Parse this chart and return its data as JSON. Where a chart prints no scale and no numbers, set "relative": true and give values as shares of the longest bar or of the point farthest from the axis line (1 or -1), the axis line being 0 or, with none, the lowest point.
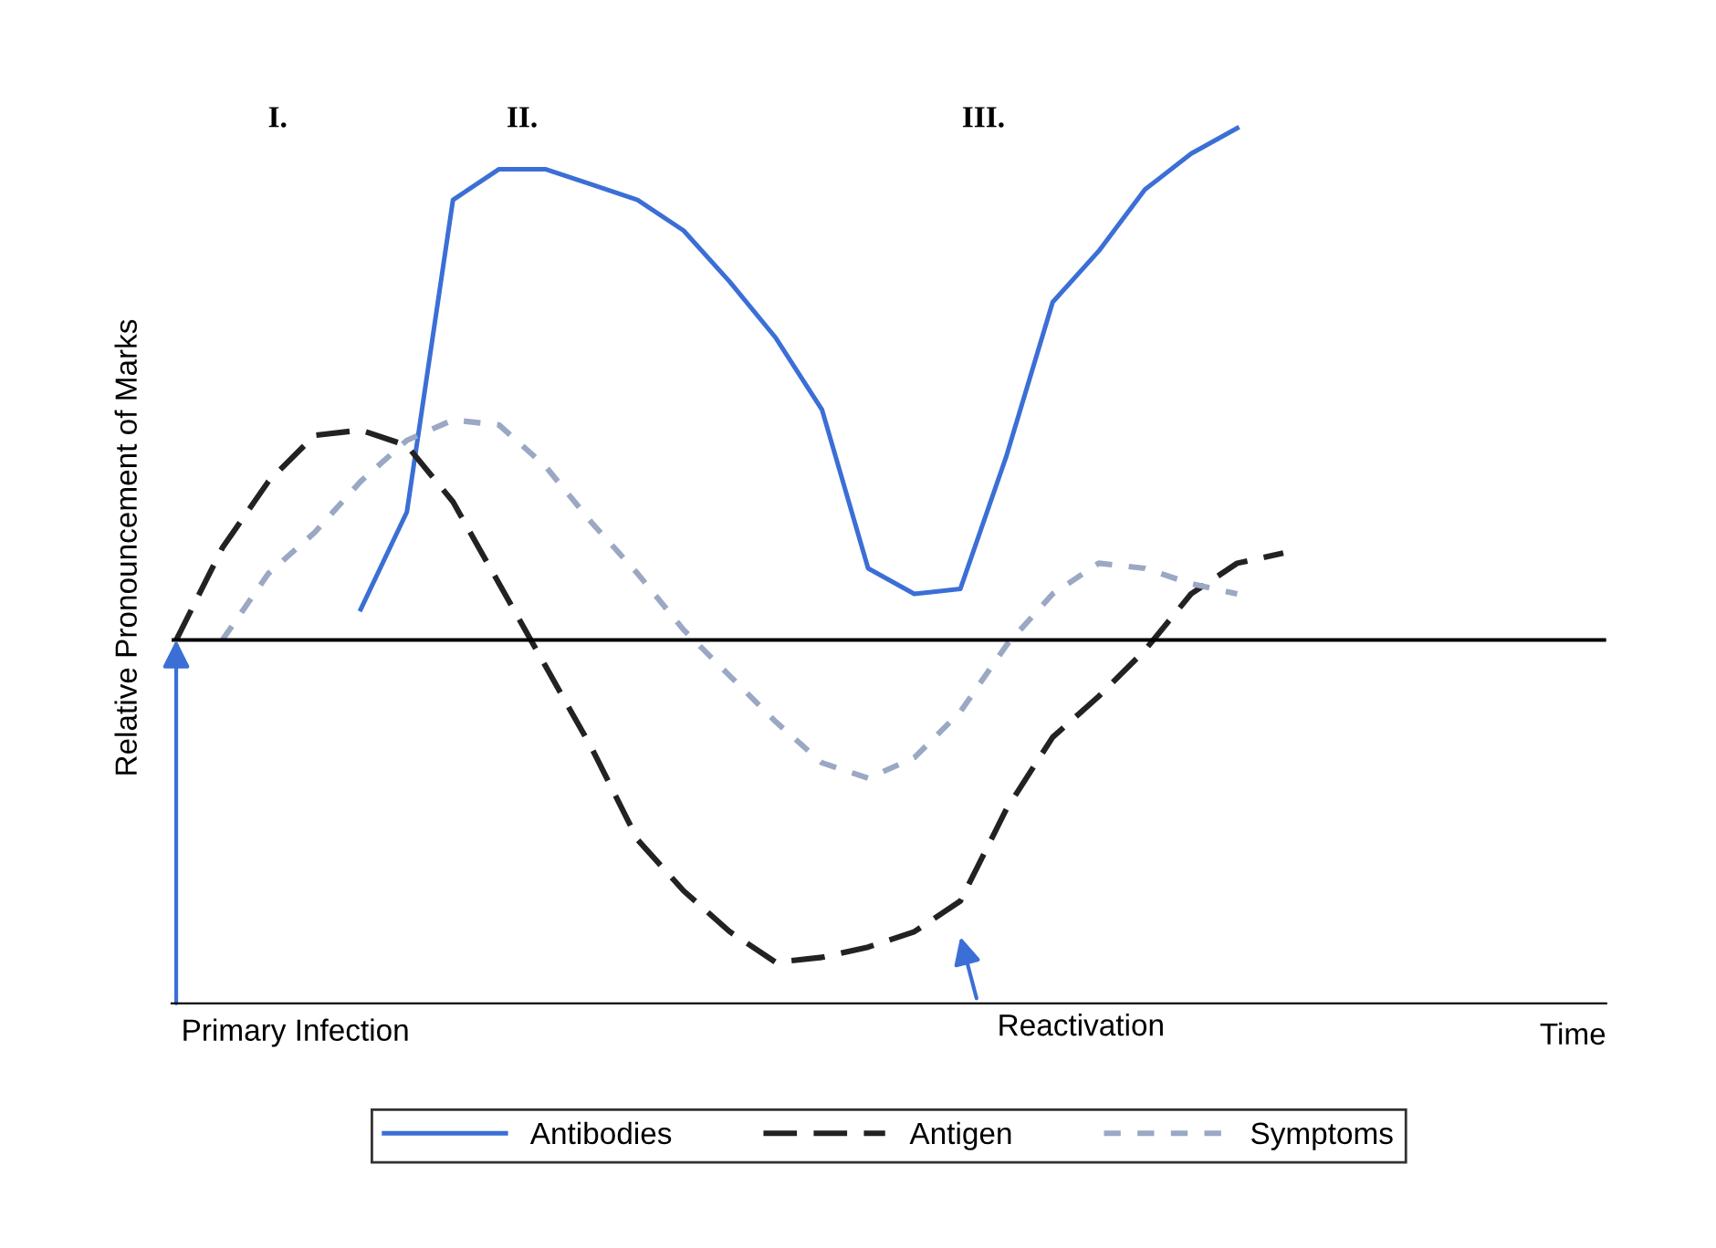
{
  "chart_data": {
    "type": "line",
    "relative": true,
    "xlabel": "Time",
    "ylabel": "Relative Pronouncement of Marks",
    "categories": [
      null,
      null,
      null,
      null,
      null,
      null,
      null,
      null,
      null,
      null,
      null,
      null,
      null,
      null,
      null,
      null,
      null,
      null,
      null,
      null,
      null,
      null,
      null,
      null,
      null,
      null,
      null,
      null,
      null,
      null,
      null,
      null
    ],
    "series": [
      {
        "name": "Antibodies",
        "color": "#3b6fd6",
        "line_style": "solid",
        "values": [
          null,
          null,
          null,
          null,
          0.06,
          0.25,
          0.86,
          0.92,
          0.92,
          0.89,
          0.86,
          0.8,
          0.7,
          0.59,
          0.45,
          0.14,
          0.09,
          0.1,
          0.36,
          0.66,
          0.76,
          0.88,
          0.95,
          1.0,
          null,
          null,
          null,
          null,
          null,
          null,
          null,
          null
        ]
      },
      {
        "name": "Antigen",
        "color": "#222222",
        "line_style": "dashed",
        "values": [
          0.0,
          0.18,
          0.31,
          0.4,
          0.41,
          0.38,
          0.27,
          0.11,
          -0.05,
          -0.21,
          -0.39,
          -0.49,
          -0.57,
          -0.63,
          -0.62,
          -0.6,
          -0.57,
          -0.51,
          -0.33,
          -0.19,
          -0.11,
          -0.02,
          0.09,
          0.15,
          0.17,
          null,
          null,
          null,
          null,
          null,
          null,
          null
        ]
      },
      {
        "name": "Symptoms",
        "color": "#9aa8c4",
        "line_style": "dotted",
        "values": [
          null,
          0.0,
          0.13,
          0.21,
          0.31,
          0.39,
          0.43,
          0.42,
          0.34,
          0.23,
          0.13,
          0.02,
          -0.07,
          -0.16,
          -0.24,
          -0.27,
          -0.23,
          -0.14,
          -0.01,
          0.09,
          0.15,
          0.14,
          0.11,
          0.09,
          null,
          null,
          null,
          null,
          null,
          null,
          null,
          null
        ]
      }
    ],
    "annotations": [
      "I.",
      "II.",
      "III.",
      "Primary Infection",
      "Reactivation"
    ],
    "legend": "bottom",
    "grid": false,
    "marker": "none"
  }
}
